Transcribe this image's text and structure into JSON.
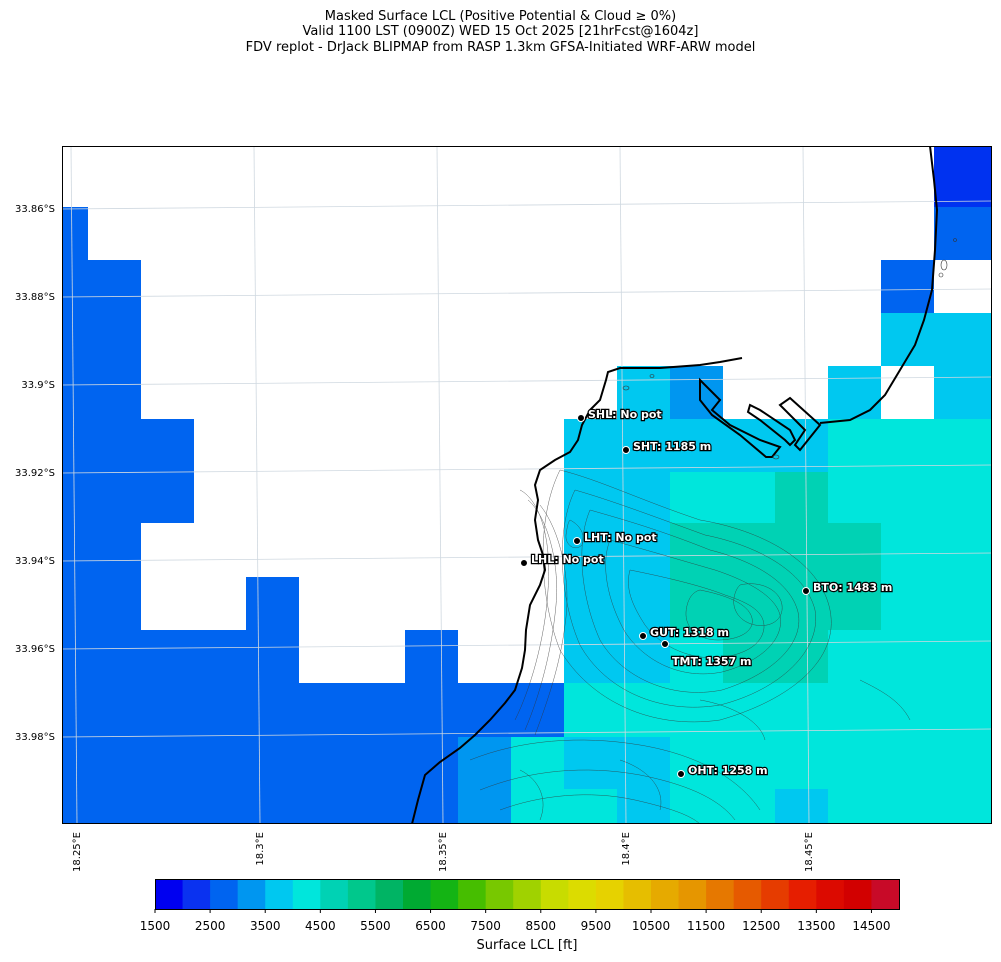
{
  "title": {
    "line1": "Masked Surface LCL (Positive Potential & Cloud ≥ 0%)",
    "line2": "Valid 1100 LST (0900Z) WED 15 Oct 2025 [21hrFcst@1604z]",
    "line3": "FDV replot - DrJack BLIPMAP from RASP 1.3km GFSA-Initiated WRF-ARW model"
  },
  "axes": {
    "lat_ticks": [
      "33.86°S",
      "33.88°S",
      "33.9°S",
      "33.92°S",
      "33.94°S",
      "33.96°S",
      "33.98°S"
    ],
    "lon_ticks": [
      "18.25°E",
      "18.3°E",
      "18.35°E",
      "18.4°E",
      "18.45°E"
    ]
  },
  "stations": [
    {
      "label": "SHL: No pot"
    },
    {
      "label": "SHT: 1185 m"
    },
    {
      "label": "LHT: No pot"
    },
    {
      "label": "LHL: No pot"
    },
    {
      "label": "BTO: 1483 m"
    },
    {
      "label": "GUT: 1318 m"
    },
    {
      "label": "TMT: 1357 m"
    },
    {
      "label": "OHT: 1258 m"
    }
  ],
  "colorbar": {
    "title": "Surface LCL [ft]",
    "tick_labels": [
      "1500",
      "2500",
      "3500",
      "4500",
      "5500",
      "6500",
      "7500",
      "8500",
      "9500",
      "10500",
      "11500",
      "12500",
      "13500",
      "14500"
    ],
    "min": 1500,
    "max": 15000,
    "step": 500,
    "colors": [
      "#0000f0",
      "#0a32f0",
      "#0064f0",
      "#0096f0",
      "#00c8f0",
      "#00e6dc",
      "#00d2b4",
      "#00c88c",
      "#00b464",
      "#00aa32",
      "#14b414",
      "#46be00",
      "#78c800",
      "#a0d200",
      "#c8dc00",
      "#dcdc00",
      "#e6d200",
      "#e6be00",
      "#e6aa00",
      "#e69600",
      "#e67800",
      "#e65a00",
      "#e63c00",
      "#e61e00",
      "#dc0a00",
      "#d20000",
      "#c80a28"
    ]
  }
}
